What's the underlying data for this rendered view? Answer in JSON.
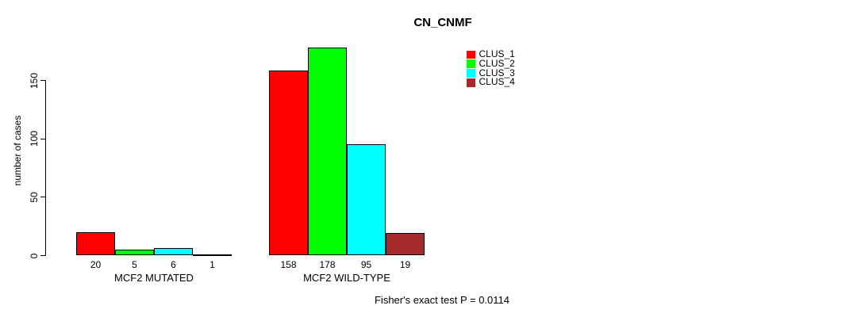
{
  "chart_data": {
    "type": "bar",
    "title": "CN_CNMF",
    "ylabel": "number of cases",
    "yticks": [
      0,
      50,
      100,
      150
    ],
    "ylim": [
      0,
      190
    ],
    "grid": false,
    "legend_position": "top-right",
    "categories": [
      "MCF2 MUTATED",
      "MCF2 WILD-TYPE"
    ],
    "series": [
      {
        "name": "CLUS_1",
        "color": "#FF0000",
        "values": [
          20,
          158
        ]
      },
      {
        "name": "CLUS_2",
        "color": "#00FF00",
        "values": [
          5,
          178
        ]
      },
      {
        "name": "CLUS_3",
        "color": "#00FFFF",
        "values": [
          6,
          95
        ]
      },
      {
        "name": "CLUS_4",
        "color": "#A52A2A",
        "values": [
          1,
          19
        ]
      }
    ],
    "annotation": "Fisher's exact test P = 0.0114"
  }
}
